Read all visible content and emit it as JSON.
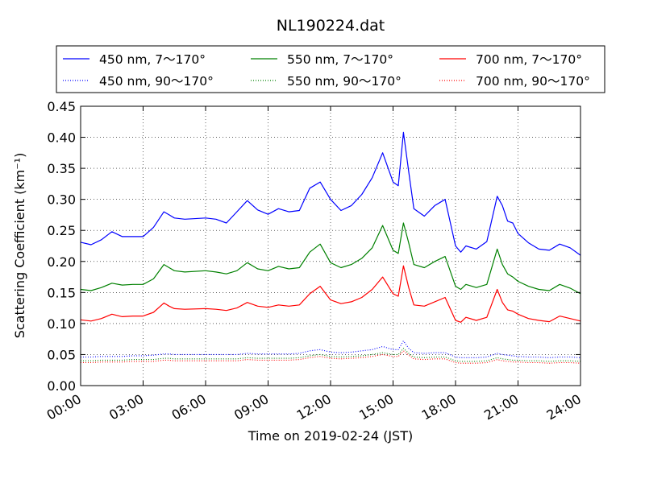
{
  "chart_data": {
    "type": "line",
    "title": "NL190224.dat",
    "xlabel": "Time on 2019-02-24 (JST)",
    "ylabel": "Scattering Coefficient (km⁻¹)",
    "xlim": [
      0,
      24
    ],
    "ylim": [
      0,
      0.45
    ],
    "grid": true,
    "legend_position": "top, above plot (3 columns)",
    "x_tick_labels": [
      "00:00",
      "03:00",
      "06:00",
      "09:00",
      "12:00",
      "15:00",
      "18:00",
      "21:00",
      "24:00"
    ],
    "x_tick_values": [
      0,
      3,
      6,
      9,
      12,
      15,
      18,
      21,
      24
    ],
    "y_tick_labels": [
      "0.00",
      "0.05",
      "0.10",
      "0.15",
      "0.20",
      "0.25",
      "0.30",
      "0.35",
      "0.40",
      "0.45"
    ],
    "y_tick_values": [
      0,
      0.05,
      0.1,
      0.15,
      0.2,
      0.25,
      0.3,
      0.35,
      0.4,
      0.45
    ],
    "x": [
      0,
      0.5,
      1,
      1.5,
      2,
      2.5,
      3,
      3.5,
      4,
      4.25,
      4.5,
      5,
      6,
      6.5,
      7,
      7.5,
      8,
      8.5,
      9,
      9.5,
      10,
      10.5,
      11,
      11.5,
      12,
      12.5,
      13,
      13.5,
      14,
      14.5,
      15,
      15.25,
      15.5,
      15.75,
      16,
      16.5,
      17,
      17.5,
      18,
      18.25,
      18.5,
      19,
      19.5,
      20,
      20.25,
      20.5,
      20.75,
      21,
      21.5,
      22,
      22.5,
      23,
      23.5,
      24
    ],
    "series": [
      {
        "name": "450 nm, 7～170°",
        "color": "#0000ff",
        "style": "solid",
        "values": [
          0.231,
          0.227,
          0.235,
          0.248,
          0.24,
          0.24,
          0.24,
          0.255,
          0.28,
          0.275,
          0.27,
          0.268,
          0.27,
          0.268,
          0.262,
          0.28,
          0.298,
          0.283,
          0.276,
          0.285,
          0.28,
          0.282,
          0.318,
          0.328,
          0.3,
          0.282,
          0.29,
          0.308,
          0.335,
          0.375,
          0.328,
          0.322,
          0.408,
          0.345,
          0.285,
          0.273,
          0.29,
          0.3,
          0.225,
          0.215,
          0.225,
          0.22,
          0.232,
          0.305,
          0.29,
          0.265,
          0.262,
          0.245,
          0.23,
          0.22,
          0.218,
          0.228,
          0.222,
          0.21
        ]
      },
      {
        "name": "450 nm, 90～170°",
        "color": "#0000ff",
        "style": "dotted",
        "values": [
          0.046,
          0.046,
          0.047,
          0.047,
          0.047,
          0.048,
          0.048,
          0.049,
          0.051,
          0.051,
          0.05,
          0.05,
          0.05,
          0.05,
          0.05,
          0.05,
          0.052,
          0.051,
          0.051,
          0.051,
          0.051,
          0.052,
          0.056,
          0.058,
          0.054,
          0.053,
          0.054,
          0.056,
          0.058,
          0.063,
          0.058,
          0.058,
          0.072,
          0.06,
          0.053,
          0.052,
          0.053,
          0.053,
          0.046,
          0.045,
          0.045,
          0.045,
          0.046,
          0.052,
          0.05,
          0.049,
          0.048,
          0.047,
          0.046,
          0.046,
          0.045,
          0.046,
          0.046,
          0.045
        ]
      },
      {
        "name": "550 nm, 7～170°",
        "color": "#008000",
        "style": "solid",
        "values": [
          0.155,
          0.153,
          0.158,
          0.165,
          0.162,
          0.163,
          0.163,
          0.172,
          0.195,
          0.19,
          0.185,
          0.183,
          0.185,
          0.183,
          0.18,
          0.185,
          0.198,
          0.188,
          0.185,
          0.192,
          0.188,
          0.19,
          0.215,
          0.228,
          0.198,
          0.19,
          0.195,
          0.205,
          0.222,
          0.258,
          0.218,
          0.213,
          0.262,
          0.23,
          0.195,
          0.19,
          0.2,
          0.208,
          0.16,
          0.155,
          0.163,
          0.158,
          0.163,
          0.22,
          0.195,
          0.18,
          0.175,
          0.168,
          0.16,
          0.155,
          0.153,
          0.163,
          0.157,
          0.148
        ]
      },
      {
        "name": "550 nm, 90～170°",
        "color": "#008000",
        "style": "dotted",
        "values": [
          0.04,
          0.04,
          0.041,
          0.041,
          0.041,
          0.042,
          0.042,
          0.042,
          0.044,
          0.044,
          0.043,
          0.043,
          0.043,
          0.043,
          0.043,
          0.043,
          0.045,
          0.044,
          0.044,
          0.044,
          0.044,
          0.045,
          0.048,
          0.05,
          0.047,
          0.046,
          0.047,
          0.048,
          0.05,
          0.053,
          0.05,
          0.05,
          0.06,
          0.052,
          0.046,
          0.045,
          0.046,
          0.046,
          0.04,
          0.039,
          0.039,
          0.039,
          0.04,
          0.045,
          0.043,
          0.042,
          0.041,
          0.041,
          0.04,
          0.04,
          0.039,
          0.04,
          0.04,
          0.039
        ]
      },
      {
        "name": "700 nm, 7～170°",
        "color": "#ff0000",
        "style": "solid",
        "values": [
          0.106,
          0.104,
          0.108,
          0.115,
          0.111,
          0.112,
          0.112,
          0.118,
          0.133,
          0.128,
          0.124,
          0.123,
          0.124,
          0.123,
          0.121,
          0.125,
          0.134,
          0.128,
          0.126,
          0.13,
          0.128,
          0.13,
          0.148,
          0.16,
          0.138,
          0.132,
          0.135,
          0.142,
          0.155,
          0.175,
          0.148,
          0.144,
          0.193,
          0.158,
          0.13,
          0.128,
          0.135,
          0.142,
          0.105,
          0.102,
          0.11,
          0.105,
          0.11,
          0.155,
          0.134,
          0.122,
          0.12,
          0.115,
          0.108,
          0.105,
          0.103,
          0.112,
          0.108,
          0.104
        ]
      },
      {
        "name": "700 nm, 90～170°",
        "color": "#ff0000",
        "style": "dotted",
        "values": [
          0.037,
          0.037,
          0.038,
          0.038,
          0.038,
          0.039,
          0.039,
          0.039,
          0.041,
          0.041,
          0.04,
          0.04,
          0.04,
          0.04,
          0.04,
          0.04,
          0.042,
          0.041,
          0.041,
          0.041,
          0.041,
          0.042,
          0.045,
          0.047,
          0.044,
          0.043,
          0.044,
          0.045,
          0.047,
          0.05,
          0.047,
          0.047,
          0.056,
          0.049,
          0.043,
          0.042,
          0.043,
          0.043,
          0.037,
          0.036,
          0.036,
          0.036,
          0.037,
          0.042,
          0.04,
          0.039,
          0.038,
          0.038,
          0.037,
          0.037,
          0.036,
          0.037,
          0.037,
          0.036
        ]
      }
    ]
  }
}
